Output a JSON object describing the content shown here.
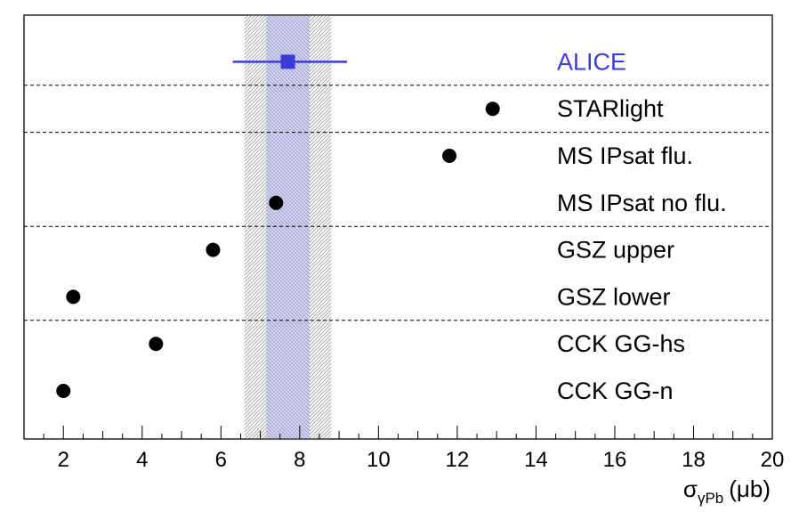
{
  "chart_data": {
    "type": "scatter",
    "title": "",
    "xlabel": {
      "main": "σ",
      "sub": "γPb",
      "unit": "(μb)"
    },
    "ylabel": "",
    "xlim": [
      1,
      20
    ],
    "xticks": [
      2,
      4,
      6,
      8,
      10,
      12,
      14,
      16,
      18,
      20
    ],
    "grid": false,
    "reference": {
      "name": "ALICE",
      "value": 7.7,
      "stat_err": [
        7.15,
        8.25
      ],
      "syst_err": [
        6.6,
        8.8
      ],
      "xerr": [
        6.3,
        9.2
      ],
      "color": "#3b3bdb"
    },
    "models": [
      {
        "name": "STARlight",
        "value": 12.9
      },
      {
        "name": "MS IPsat flu.",
        "value": 11.8
      },
      {
        "name": "MS IPsat no flu.",
        "value": 7.4
      },
      {
        "name": "GSZ upper",
        "value": 5.8
      },
      {
        "name": "GSZ lower",
        "value": 2.25
      },
      {
        "name": "CCK GG-hs",
        "value": 4.35
      },
      {
        "name": "CCK GG-n",
        "value": 2.0
      }
    ],
    "separators_after": [
      "ALICE",
      "STARlight",
      "MS IPsat no flu.",
      "GSZ lower"
    ]
  }
}
